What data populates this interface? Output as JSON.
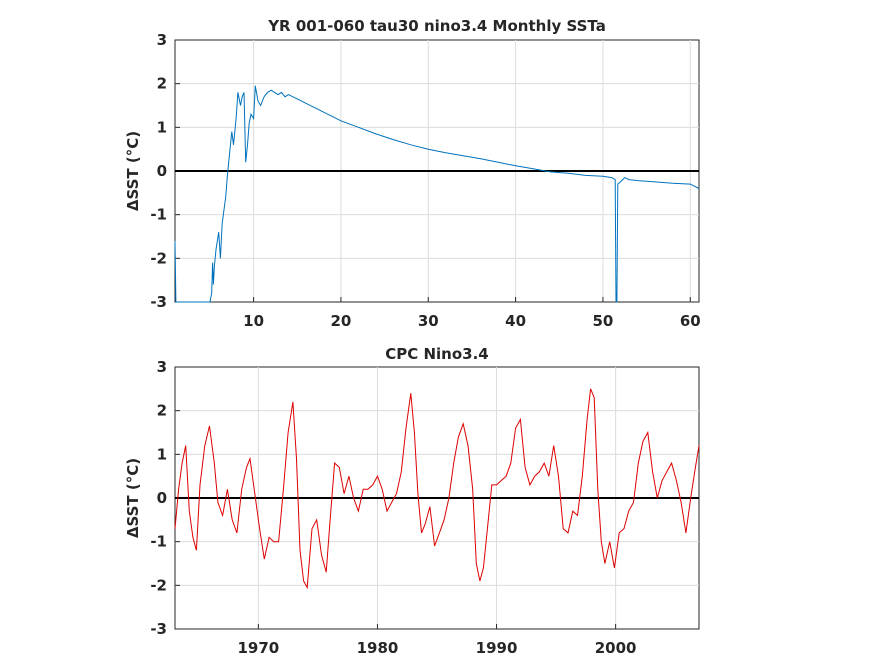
{
  "chart_data": [
    {
      "type": "line",
      "title": "YR 001-060 tau30 nino3.4 Monthly SSTa",
      "xlabel": "",
      "ylabel": "ΔSST (°C)",
      "xlim": [
        1,
        61
      ],
      "ylim": [
        -3,
        3
      ],
      "xticks": [
        10,
        20,
        30,
        40,
        50,
        60
      ],
      "yticks": [
        -3,
        -2,
        -1,
        0,
        1,
        2,
        3
      ],
      "grid": true,
      "reference_line": 0,
      "color": "#0072BD",
      "series": [
        {
          "x": [
            1.0,
            1.1,
            1.3,
            5.0,
            5.2,
            5.3,
            5.4,
            5.5,
            5.7,
            6.0,
            6.2,
            6.4,
            6.6,
            6.8,
            7.0,
            7.3,
            7.5,
            7.7,
            8.0,
            8.2,
            8.5,
            8.7,
            8.9,
            9.1,
            9.3,
            9.5,
            9.7,
            10.0,
            10.2,
            10.5,
            10.8,
            11.2,
            11.6,
            12.0,
            12.4,
            12.8,
            13.2,
            13.6,
            14.0,
            14.5,
            15.0,
            15.5,
            16.0,
            17.0,
            18.0,
            19.0,
            20.0,
            22.0,
            24.0,
            26.0,
            28.0,
            30.0,
            32.0,
            34.0,
            36.0,
            38.0,
            40.0,
            42.0,
            44.0,
            46.0,
            48.0,
            50.0,
            51.0,
            51.4,
            51.5,
            51.6,
            51.7,
            52.0,
            52.5,
            53.0,
            54.0,
            56.0,
            58.0,
            60.0,
            61.0
          ],
          "y": [
            -1.6,
            -3.0,
            -3.0,
            -3.0,
            -2.8,
            -2.1,
            -2.6,
            -2.2,
            -1.8,
            -1.4,
            -2.0,
            -1.2,
            -0.9,
            -0.6,
            -0.1,
            0.5,
            0.9,
            0.6,
            1.2,
            1.8,
            1.5,
            1.7,
            1.8,
            0.2,
            0.6,
            1.1,
            1.3,
            1.2,
            1.95,
            1.6,
            1.5,
            1.7,
            1.8,
            1.85,
            1.8,
            1.75,
            1.8,
            1.7,
            1.75,
            1.7,
            1.65,
            1.6,
            1.55,
            1.45,
            1.35,
            1.25,
            1.15,
            1.0,
            0.85,
            0.72,
            0.6,
            0.5,
            0.42,
            0.35,
            0.28,
            0.2,
            0.12,
            0.05,
            -0.02,
            -0.05,
            -0.1,
            -0.12,
            -0.15,
            -0.2,
            -3.0,
            -3.0,
            -0.3,
            -0.25,
            -0.15,
            -0.2,
            -0.22,
            -0.25,
            -0.28,
            -0.3,
            -0.4
          ]
        }
      ]
    },
    {
      "type": "line",
      "title": "CPC Nino3.4",
      "xlabel": "",
      "ylabel": "ΔSST (°C)",
      "xlim": [
        1963,
        2007
      ],
      "ylim": [
        -3,
        3
      ],
      "xticks": [
        1970,
        1980,
        1990,
        2000
      ],
      "yticks": [
        -3,
        -2,
        -1,
        0,
        1,
        2,
        3
      ],
      "grid": true,
      "reference_line": 0,
      "color": "#DD0000",
      "series": [
        {
          "x": [
            1963.0,
            1963.3,
            1963.6,
            1963.9,
            1964.2,
            1964.5,
            1964.8,
            1965.1,
            1965.5,
            1965.9,
            1966.3,
            1966.6,
            1967.0,
            1967.4,
            1967.8,
            1968.2,
            1968.6,
            1969.0,
            1969.3,
            1969.7,
            1970.1,
            1970.5,
            1970.9,
            1971.3,
            1971.7,
            1972.1,
            1972.5,
            1972.9,
            1973.2,
            1973.5,
            1973.8,
            1974.1,
            1974.5,
            1974.9,
            1975.3,
            1975.7,
            1976.0,
            1976.4,
            1976.8,
            1977.2,
            1977.6,
            1978.0,
            1978.4,
            1978.8,
            1979.2,
            1979.6,
            1980.0,
            1980.4,
            1980.8,
            1981.2,
            1981.6,
            1982.0,
            1982.4,
            1982.8,
            1983.1,
            1983.4,
            1983.7,
            1984.0,
            1984.4,
            1984.8,
            1985.2,
            1985.6,
            1986.0,
            1986.4,
            1986.8,
            1987.2,
            1987.6,
            1988.0,
            1988.3,
            1988.6,
            1988.9,
            1989.2,
            1989.6,
            1990.0,
            1990.4,
            1990.8,
            1991.2,
            1991.6,
            1992.0,
            1992.4,
            1992.8,
            1993.2,
            1993.6,
            1994.0,
            1994.4,
            1994.8,
            1995.2,
            1995.6,
            1996.0,
            1996.4,
            1996.8,
            1997.2,
            1997.6,
            1997.9,
            1998.2,
            1998.5,
            1998.8,
            1999.1,
            1999.5,
            1999.9,
            2000.3,
            2000.7,
            2001.1,
            2001.5,
            2001.9,
            2002.3,
            2002.7,
            2003.1,
            2003.5,
            2003.9,
            2004.3,
            2004.7,
            2005.1,
            2005.5,
            2005.9,
            2006.3,
            2006.7,
            2007.0
          ],
          "y": [
            -0.7,
            0.2,
            0.8,
            1.2,
            -0.3,
            -0.9,
            -1.2,
            0.3,
            1.2,
            1.65,
            0.8,
            -0.1,
            -0.4,
            0.2,
            -0.5,
            -0.8,
            0.2,
            0.7,
            0.9,
            0.1,
            -0.7,
            -1.4,
            -0.9,
            -1.0,
            -1.0,
            0.2,
            1.5,
            2.2,
            0.9,
            -1.2,
            -1.9,
            -2.05,
            -0.7,
            -0.5,
            -1.3,
            -1.7,
            -0.6,
            0.8,
            0.7,
            0.1,
            0.5,
            0.0,
            -0.3,
            0.2,
            0.2,
            0.3,
            0.5,
            0.2,
            -0.3,
            -0.1,
            0.1,
            0.6,
            1.6,
            2.4,
            1.5,
            0.1,
            -0.8,
            -0.6,
            -0.2,
            -1.1,
            -0.8,
            -0.5,
            0.0,
            0.8,
            1.4,
            1.7,
            1.2,
            0.2,
            -1.5,
            -1.9,
            -1.6,
            -0.8,
            0.3,
            0.3,
            0.4,
            0.5,
            0.8,
            1.6,
            1.8,
            0.7,
            0.3,
            0.5,
            0.6,
            0.8,
            0.5,
            1.2,
            0.5,
            -0.7,
            -0.8,
            -0.3,
            -0.4,
            0.5,
            1.8,
            2.5,
            2.3,
            0.2,
            -1.0,
            -1.5,
            -1.0,
            -1.6,
            -0.8,
            -0.7,
            -0.3,
            -0.1,
            0.8,
            1.3,
            1.5,
            0.6,
            0.0,
            0.4,
            0.6,
            0.8,
            0.4,
            -0.1,
            -0.8,
            0.0,
            0.7,
            1.2
          ]
        }
      ]
    }
  ]
}
